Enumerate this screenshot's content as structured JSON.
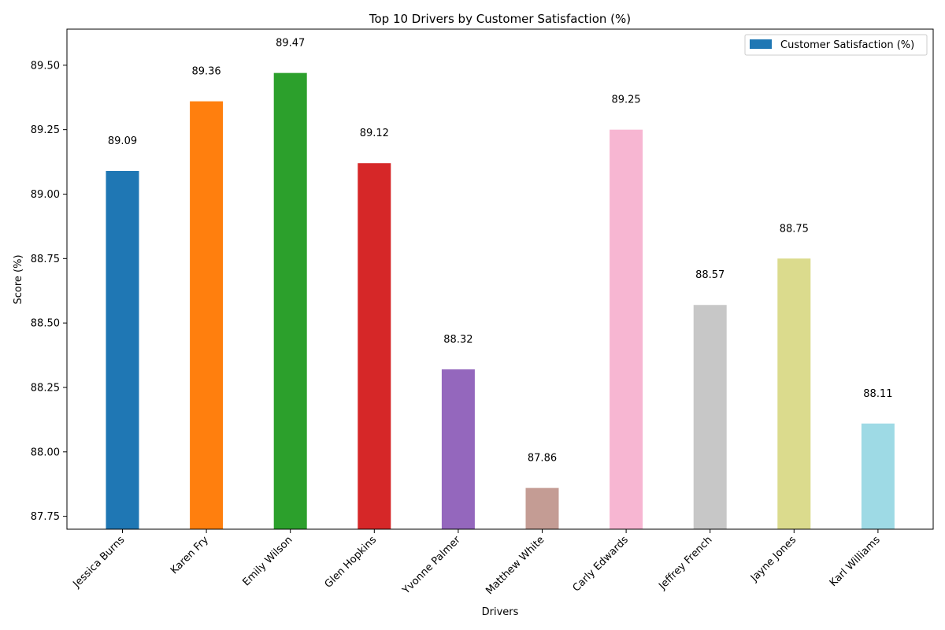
{
  "chart_data": {
    "type": "bar",
    "title": "Top 10 Drivers by Customer Satisfaction (%)",
    "xlabel": "Drivers",
    "ylabel": "Score (%)",
    "categories": [
      "Jessica Burns",
      "Karen Fry",
      "Emily Wilson",
      "Glen Hopkins",
      "Yvonne Palmer",
      "Matthew White",
      "Carly Edwards",
      "Jeffrey French",
      "Jayne Jones",
      "Karl Williams"
    ],
    "series": [
      {
        "name": "Customer Satisfaction (%)",
        "values": [
          89.09,
          89.36,
          89.47,
          89.12,
          88.32,
          87.86,
          89.25,
          88.57,
          88.75,
          88.11
        ],
        "value_labels": [
          "89.09",
          "89.36",
          "89.47",
          "89.12",
          "88.32",
          "87.86",
          "89.25",
          "88.57",
          "88.75",
          "88.11"
        ]
      }
    ],
    "bar_colors": [
      "#1f77b4",
      "#ff7f0e",
      "#2ca02c",
      "#d62728",
      "#9467bd",
      "#c49c94",
      "#f7b6d2",
      "#c7c7c7",
      "#dbdb8d",
      "#9edae5"
    ],
    "legend_color": "#1f77b4",
    "ylim": [
      87.7,
      89.64
    ],
    "yticks": [
      87.75,
      88.0,
      88.25,
      88.5,
      88.75,
      89.0,
      89.25,
      89.5
    ],
    "ytick_labels": [
      "87.75",
      "88.00",
      "88.25",
      "88.50",
      "88.75",
      "89.00",
      "89.25",
      "89.50"
    ],
    "grid": false,
    "legend_position": "top-right"
  }
}
